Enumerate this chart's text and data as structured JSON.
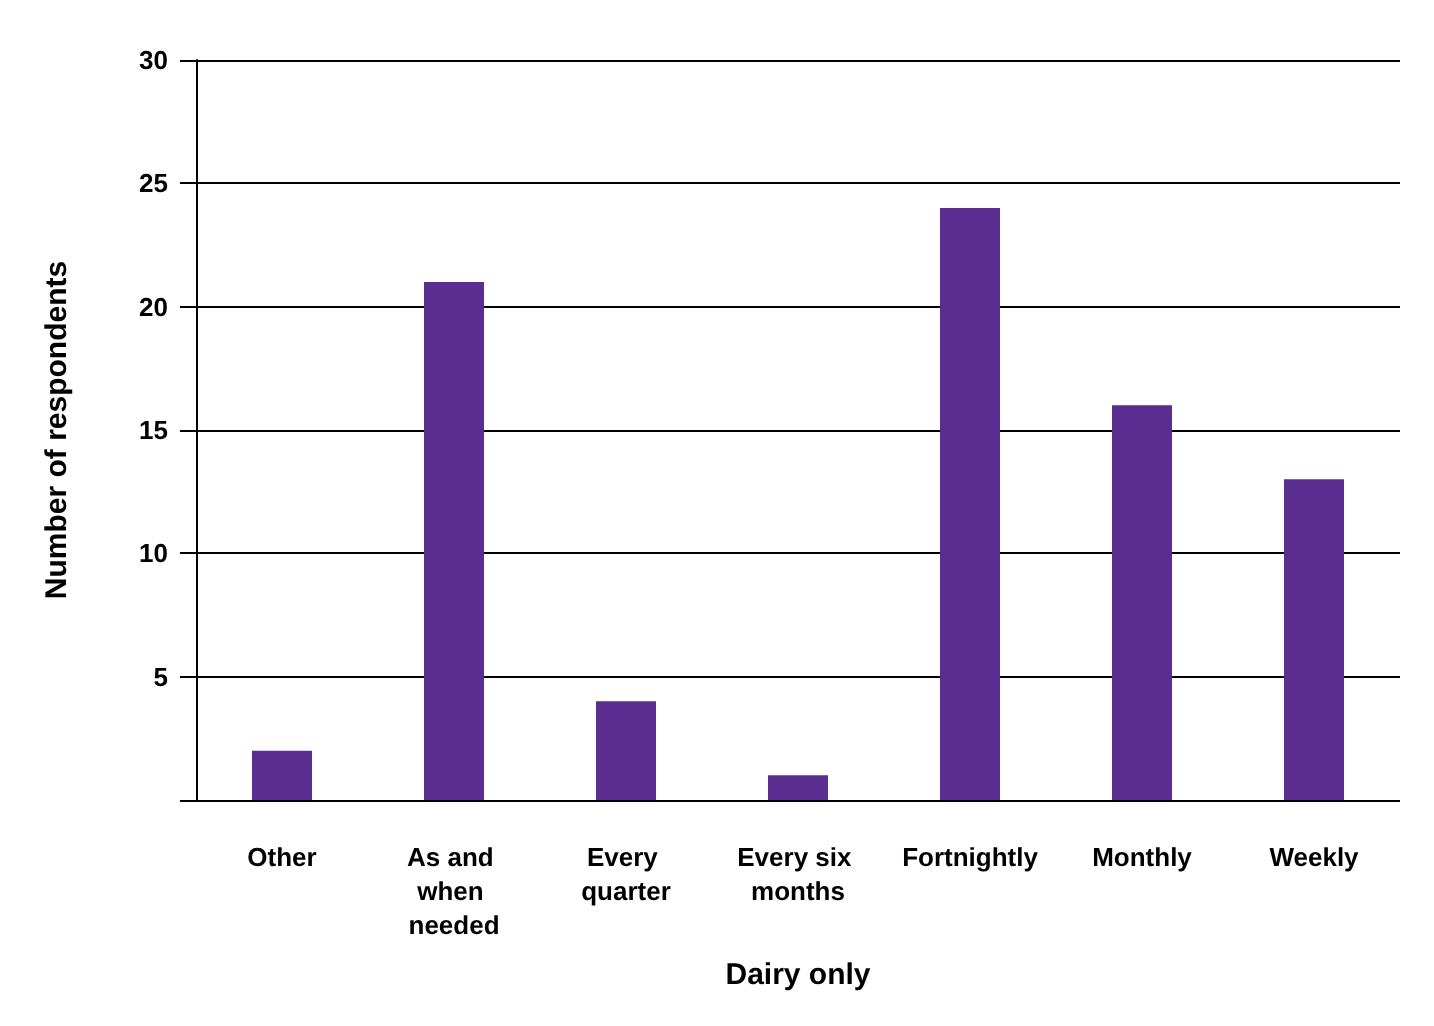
{
  "chart_data": {
    "type": "bar",
    "xlabel": "Dairy only",
    "ylabel": "Number of respondents",
    "categories": [
      "Other",
      "As and when needed",
      "Every quarter",
      "Every six months",
      "Fortnightly",
      "Monthly",
      "Weekly"
    ],
    "values": [
      2,
      21,
      4,
      1,
      24,
      16,
      13
    ],
    "color": "#5c2d91",
    "ylim": [
      0,
      30
    ],
    "yticks": [
      {
        "value": 0,
        "label": null
      },
      5,
      10,
      15,
      20,
      25,
      30
    ],
    "grid": "y"
  }
}
